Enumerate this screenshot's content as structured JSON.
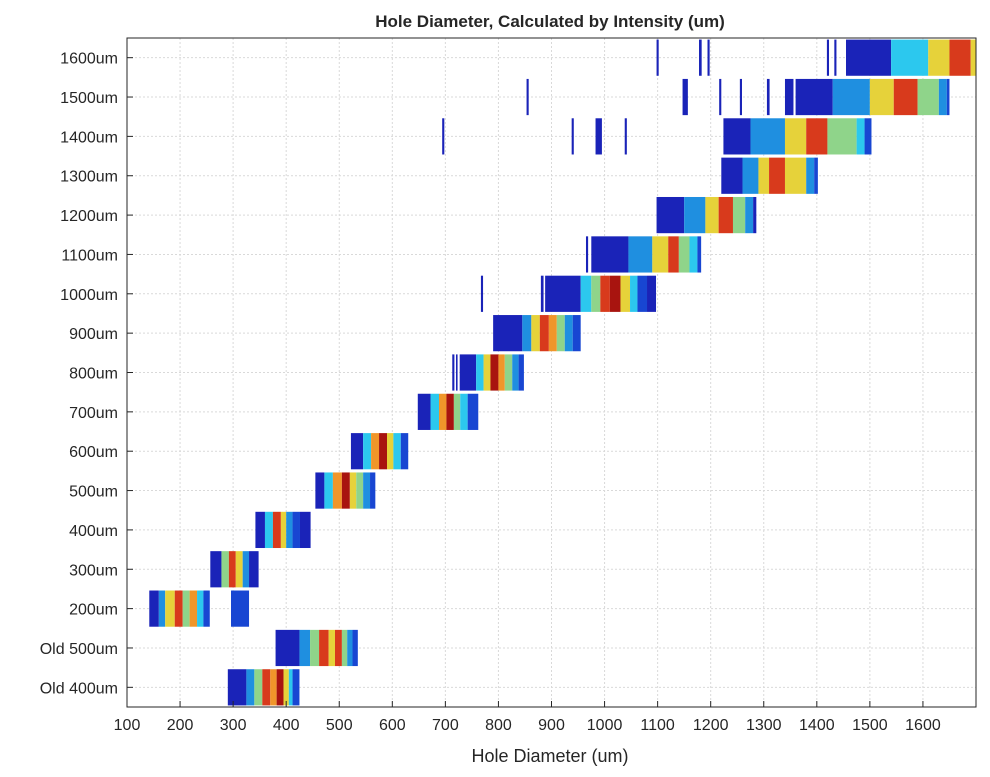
{
  "chart_data": {
    "type": "heatmap",
    "title": "Hole Diameter, Calculated by Intensity (um)",
    "xlabel": "Hole Diameter (um)",
    "ylabel": "",
    "xlim": [
      100,
      1700
    ],
    "x_ticks": [
      100,
      200,
      300,
      400,
      500,
      600,
      700,
      800,
      900,
      1000,
      1100,
      1200,
      1300,
      1400,
      1500,
      1600
    ],
    "grid": true,
    "categories": [
      "Old 400um",
      "Old 500um",
      "200um",
      "300um",
      "400um",
      "500um",
      "600um",
      "700um",
      "800um",
      "900um",
      "1000um",
      "1100um",
      "1200um",
      "1300um",
      "1400um",
      "1500um",
      "1600um"
    ],
    "colormap": [
      "#1a23b8",
      "#1846d2",
      "#1f8fe0",
      "#2cc8ee",
      "#8fd48a",
      "#e6d23a",
      "#f0962a",
      "#d83a1c",
      "#a8140f"
    ],
    "series": [
      {
        "category": "Old 400um",
        "bands": [
          [
            290,
            325,
            0.05
          ],
          [
            325,
            340,
            0.3
          ],
          [
            340,
            355,
            0.55
          ],
          [
            355,
            370,
            0.85
          ],
          [
            370,
            382,
            0.7
          ],
          [
            382,
            395,
            0.95
          ],
          [
            395,
            405,
            0.6
          ],
          [
            405,
            412,
            0.35
          ],
          [
            412,
            425,
            0.15
          ]
        ],
        "spikes": []
      },
      {
        "category": "Old 500um",
        "bands": [
          [
            380,
            425,
            0.05
          ],
          [
            425,
            445,
            0.3
          ],
          [
            445,
            462,
            0.55
          ],
          [
            462,
            480,
            0.85
          ],
          [
            480,
            492,
            0.6
          ],
          [
            492,
            505,
            0.9
          ],
          [
            505,
            515,
            0.5
          ],
          [
            515,
            525,
            0.3
          ],
          [
            525,
            535,
            0.1
          ]
        ],
        "spikes": []
      },
      {
        "category": "200um",
        "bands": [
          [
            142,
            160,
            0.05
          ],
          [
            160,
            172,
            0.3
          ],
          [
            172,
            190,
            0.6
          ],
          [
            190,
            205,
            0.9
          ],
          [
            205,
            218,
            0.55
          ],
          [
            218,
            232,
            0.75
          ],
          [
            232,
            244,
            0.4
          ],
          [
            244,
            256,
            0.1
          ]
        ],
        "spikes": [
          [
            296,
            330,
            0.1
          ]
        ]
      },
      {
        "category": "300um",
        "bands": [
          [
            257,
            278,
            0.05
          ],
          [
            278,
            292,
            0.45
          ],
          [
            292,
            305,
            0.85
          ],
          [
            305,
            318,
            0.6
          ],
          [
            318,
            330,
            0.3
          ],
          [
            330,
            348,
            0.05
          ]
        ],
        "spikes": []
      },
      {
        "category": "400um",
        "bands": [
          [
            342,
            360,
            0.05
          ],
          [
            360,
            375,
            0.35
          ],
          [
            375,
            390,
            0.85
          ],
          [
            390,
            400,
            0.6
          ],
          [
            400,
            412,
            0.3
          ],
          [
            412,
            426,
            0.1
          ],
          [
            426,
            446,
            0.05
          ]
        ],
        "spikes": []
      },
      {
        "category": "500um",
        "bands": [
          [
            455,
            472,
            0.05
          ],
          [
            472,
            488,
            0.4
          ],
          [
            488,
            505,
            0.8
          ],
          [
            505,
            520,
            0.95
          ],
          [
            520,
            532,
            0.65
          ],
          [
            532,
            545,
            0.45
          ],
          [
            545,
            558,
            0.25
          ],
          [
            558,
            568,
            0.1
          ]
        ],
        "spikes": []
      },
      {
        "category": "600um",
        "bands": [
          [
            522,
            545,
            0.05
          ],
          [
            545,
            560,
            0.4
          ],
          [
            560,
            575,
            0.75
          ],
          [
            575,
            590,
            0.95
          ],
          [
            590,
            602,
            0.6
          ],
          [
            602,
            616,
            0.4
          ],
          [
            616,
            630,
            0.15
          ]
        ],
        "spikes": []
      },
      {
        "category": "700um",
        "bands": [
          [
            648,
            672,
            0.05
          ],
          [
            672,
            688,
            0.4
          ],
          [
            688,
            702,
            0.8
          ],
          [
            702,
            716,
            0.95
          ],
          [
            716,
            728,
            0.55
          ],
          [
            728,
            742,
            0.35
          ],
          [
            742,
            762,
            0.1
          ]
        ],
        "spikes": []
      },
      {
        "category": "800um",
        "bands": [
          [
            727,
            758,
            0.05
          ],
          [
            758,
            772,
            0.35
          ],
          [
            772,
            785,
            0.6
          ],
          [
            785,
            800,
            0.95
          ],
          [
            800,
            812,
            0.7
          ],
          [
            812,
            826,
            0.45
          ],
          [
            826,
            838,
            0.25
          ],
          [
            838,
            848,
            0.1
          ]
        ],
        "spikes": [
          [
            713,
            717,
            0.05
          ],
          [
            720,
            723,
            0.05
          ]
        ]
      },
      {
        "category": "900um",
        "bands": [
          [
            790,
            845,
            0.05
          ],
          [
            845,
            862,
            0.3
          ],
          [
            862,
            878,
            0.6
          ],
          [
            878,
            895,
            0.9
          ],
          [
            895,
            910,
            0.7
          ],
          [
            910,
            925,
            0.45
          ],
          [
            925,
            940,
            0.3
          ],
          [
            940,
            955,
            0.1
          ]
        ],
        "spikes": []
      },
      {
        "category": "1000um",
        "bands": [
          [
            888,
            955,
            0.05
          ],
          [
            955,
            975,
            0.35
          ],
          [
            975,
            992,
            0.55
          ],
          [
            992,
            1010,
            0.85
          ],
          [
            1010,
            1030,
            0.95
          ],
          [
            1030,
            1048,
            0.6
          ],
          [
            1048,
            1062,
            0.4
          ],
          [
            1062,
            1080,
            0.15
          ],
          [
            1080,
            1097,
            0.05
          ]
        ],
        "spikes": [
          [
            767,
            771,
            0.05
          ],
          [
            880,
            885,
            0.05
          ]
        ]
      },
      {
        "category": "1100um",
        "bands": [
          [
            975,
            1045,
            0.05
          ],
          [
            1045,
            1090,
            0.3
          ],
          [
            1090,
            1120,
            0.6
          ],
          [
            1120,
            1140,
            0.9
          ],
          [
            1140,
            1160,
            0.55
          ],
          [
            1160,
            1175,
            0.35
          ],
          [
            1175,
            1182,
            0.1
          ]
        ],
        "spikes": [
          [
            965,
            969,
            0.05
          ]
        ]
      },
      {
        "category": "1200um",
        "bands": [
          [
            1098,
            1150,
            0.05
          ],
          [
            1150,
            1190,
            0.3
          ],
          [
            1190,
            1215,
            0.6
          ],
          [
            1215,
            1242,
            0.9
          ],
          [
            1242,
            1265,
            0.55
          ],
          [
            1265,
            1280,
            0.2
          ],
          [
            1280,
            1286,
            0.05
          ]
        ],
        "spikes": []
      },
      {
        "category": "1300um",
        "bands": [
          [
            1220,
            1260,
            0.05
          ],
          [
            1260,
            1290,
            0.3
          ],
          [
            1290,
            1310,
            0.6
          ],
          [
            1310,
            1340,
            0.85
          ],
          [
            1340,
            1380,
            0.6
          ],
          [
            1380,
            1395,
            0.3
          ],
          [
            1395,
            1402,
            0.1
          ]
        ],
        "spikes": []
      },
      {
        "category": "1400um",
        "bands": [
          [
            1224,
            1275,
            0.05
          ],
          [
            1275,
            1340,
            0.3
          ],
          [
            1340,
            1380,
            0.6
          ],
          [
            1380,
            1420,
            0.9
          ],
          [
            1420,
            1475,
            0.55
          ],
          [
            1475,
            1490,
            0.35
          ],
          [
            1490,
            1503,
            0.1
          ]
        ],
        "spikes": [
          [
            694,
            698,
            0.05
          ],
          [
            938,
            942,
            0.05
          ],
          [
            983,
            995,
            0.05
          ],
          [
            1038,
            1042,
            0.05
          ]
        ]
      },
      {
        "category": "1500um",
        "bands": [
          [
            1360,
            1430,
            0.05
          ],
          [
            1430,
            1500,
            0.3
          ],
          [
            1500,
            1545,
            0.6
          ],
          [
            1545,
            1590,
            0.9
          ],
          [
            1590,
            1630,
            0.55
          ],
          [
            1630,
            1645,
            0.3
          ],
          [
            1645,
            1650,
            0.1
          ]
        ],
        "spikes": [
          [
            853,
            857,
            0.05
          ],
          [
            1147,
            1157,
            0.05
          ],
          [
            1216,
            1220,
            0.05
          ],
          [
            1255,
            1259,
            0.05
          ],
          [
            1306,
            1311,
            0.05
          ],
          [
            1340,
            1356,
            0.05
          ]
        ]
      },
      {
        "category": "1600um",
        "bands": [
          [
            1455,
            1540,
            0.05
          ],
          [
            1540,
            1610,
            0.35
          ],
          [
            1610,
            1650,
            0.6
          ],
          [
            1650,
            1690,
            0.9
          ],
          [
            1690,
            1725,
            0.6
          ],
          [
            1725,
            1750,
            0.3
          ]
        ],
        "spikes": [
          [
            1098,
            1102,
            0.05
          ],
          [
            1178,
            1183,
            0.05
          ],
          [
            1194,
            1198,
            0.05
          ],
          [
            1419,
            1423,
            0.05
          ],
          [
            1433,
            1437,
            0.05
          ]
        ]
      }
    ]
  }
}
